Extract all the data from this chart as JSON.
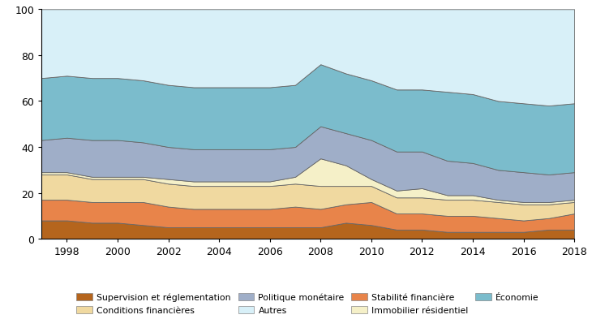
{
  "years": [
    1997,
    1998,
    1999,
    2000,
    2001,
    2002,
    2003,
    2004,
    2005,
    2006,
    2007,
    2008,
    2009,
    2010,
    2011,
    2012,
    2013,
    2014,
    2015,
    2016,
    2017,
    2018
  ],
  "supervision": [
    8,
    8,
    7,
    7,
    6,
    5,
    5,
    5,
    5,
    5,
    5,
    5,
    7,
    6,
    4,
    4,
    3,
    3,
    3,
    3,
    4,
    4
  ],
  "stabilite": [
    9,
    9,
    9,
    9,
    10,
    9,
    8,
    8,
    8,
    8,
    9,
    8,
    8,
    10,
    7,
    7,
    7,
    7,
    6,
    5,
    5,
    7
  ],
  "conditions": [
    11,
    11,
    10,
    10,
    10,
    10,
    10,
    10,
    10,
    10,
    10,
    10,
    8,
    7,
    7,
    7,
    7,
    7,
    7,
    7,
    6,
    5
  ],
  "immobilier": [
    1,
    1,
    1,
    1,
    1,
    2,
    2,
    2,
    2,
    2,
    3,
    12,
    9,
    3,
    3,
    4,
    2,
    2,
    1,
    1,
    1,
    1
  ],
  "politique": [
    14,
    15,
    16,
    16,
    15,
    14,
    14,
    14,
    14,
    14,
    13,
    14,
    14,
    17,
    17,
    16,
    15,
    14,
    13,
    13,
    12,
    12
  ],
  "economie": [
    27,
    27,
    27,
    27,
    27,
    27,
    27,
    27,
    27,
    27,
    27,
    27,
    26,
    26,
    27,
    27,
    30,
    30,
    30,
    30,
    30,
    30
  ],
  "autres": [
    30,
    29,
    30,
    30,
    31,
    33,
    34,
    34,
    34,
    34,
    33,
    24,
    28,
    31,
    35,
    35,
    36,
    37,
    40,
    41,
    42,
    41
  ],
  "colors": {
    "supervision": "#b5651d",
    "stabilite": "#e8844a",
    "conditions": "#f0d9a0",
    "immobilier": "#f5f0c8",
    "politique": "#9faec8",
    "economie": "#7bbccc",
    "autres": "#d8f0f8"
  },
  "labels": {
    "supervision": "Supervision et réglementation",
    "stabilite": "Stabilité financière",
    "conditions": "Conditions financières",
    "immobilier": "Immobilier résidentiel",
    "politique": "Politique monétaire",
    "economie": "Économie",
    "autres": "Autres"
  },
  "ylim": [
    0,
    100
  ],
  "xlim": [
    1997,
    2018
  ],
  "yticks": [
    0,
    20,
    40,
    60,
    80,
    100
  ],
  "xticks": [
    1998,
    2000,
    2002,
    2004,
    2006,
    2008,
    2010,
    2012,
    2014,
    2016,
    2018
  ]
}
